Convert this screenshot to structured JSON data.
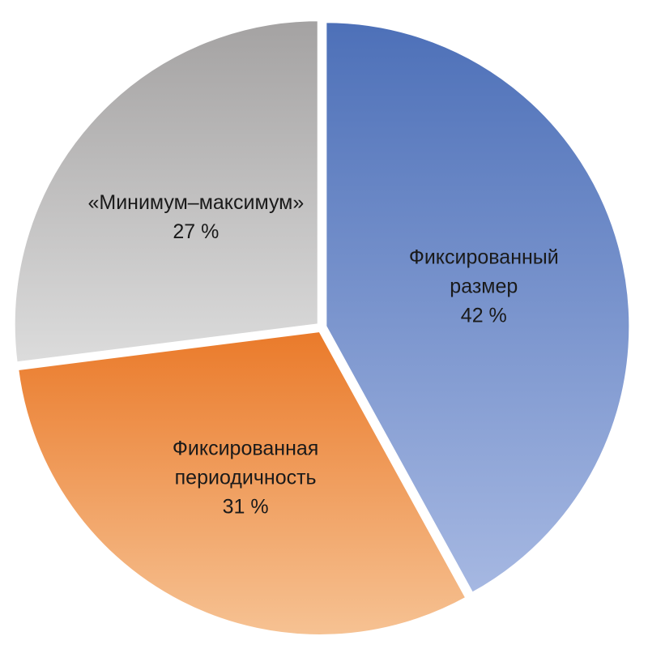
{
  "chart_data": {
    "type": "pie",
    "title": "",
    "start_angle": "12 o'clock",
    "direction": "clockwise",
    "legend": "none",
    "slices": [
      {
        "label": [
          "Фиксированный",
          "размер"
        ],
        "value": 42,
        "value_label": "42 %",
        "color_top": "#4d70b8",
        "color_bottom": "#a6b8e2"
      },
      {
        "label": [
          "Фиксированная",
          "периодичность"
        ],
        "value": 31,
        "value_label": "31 %",
        "color_top": "#ea7a2a",
        "color_bottom": "#f6c293"
      },
      {
        "label": [
          "«Минимум–максимум»"
        ],
        "value": 27,
        "value_label": "27 %",
        "color_top": "#a4a2a2",
        "color_bottom": "#dcdcdc"
      }
    ]
  }
}
